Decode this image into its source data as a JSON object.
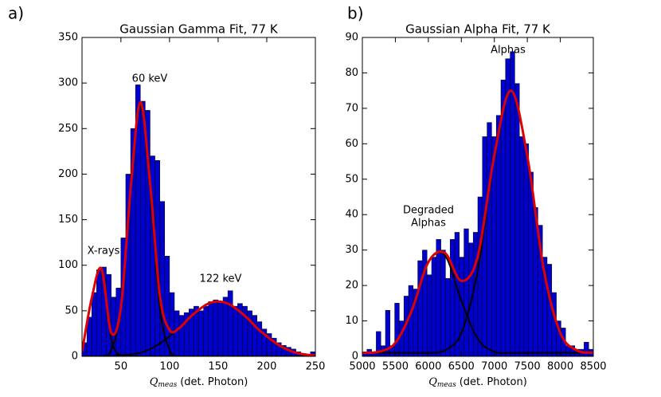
{
  "chart_data": [
    {
      "type": "histogram",
      "panel_label": "a)",
      "title": "Gaussian Gamma Fit, 77 K",
      "x_label": {
        "symbol": "Q",
        "subscript": "meas",
        "text": "(det. Photon)"
      },
      "bins": [
        10,
        15,
        20,
        25,
        30,
        35,
        40,
        45,
        50,
        55,
        60,
        65,
        70,
        75,
        80,
        85,
        90,
        95,
        100,
        105,
        110,
        115,
        120,
        125,
        130,
        135,
        140,
        145,
        150,
        155,
        160,
        165,
        170,
        175,
        180,
        185,
        190,
        195,
        200,
        205,
        210,
        215,
        220,
        225,
        230,
        235,
        240,
        245,
        250
      ],
      "counts": [
        15,
        43,
        70,
        95,
        98,
        90,
        65,
        75,
        130,
        200,
        250,
        298,
        280,
        270,
        220,
        215,
        170,
        110,
        70,
        50,
        45,
        48,
        52,
        55,
        50,
        55,
        60,
        62,
        60,
        65,
        72,
        55,
        58,
        55,
        50,
        45,
        38,
        30,
        25,
        20,
        15,
        12,
        10,
        8,
        5,
        3,
        2,
        5
      ],
      "color": "#0000cc",
      "fits": [
        {
          "color": "#000000",
          "x": [
            10,
            20,
            30,
            40,
            50,
            60,
            70,
            80,
            90,
            100,
            110,
            120,
            130,
            140,
            150,
            160,
            170,
            180,
            190,
            200,
            210,
            220,
            230,
            240,
            250
          ],
          "values": [
            5,
            64,
            96,
            19,
            0,
            0,
            0,
            0,
            0,
            0,
            0,
            0,
            0,
            0,
            0,
            0,
            0,
            0,
            0,
            0,
            0,
            0,
            0,
            0,
            0
          ]
        },
        {
          "color": "#000000",
          "x": [
            10,
            20,
            30,
            40,
            50,
            60,
            70,
            80,
            90,
            100,
            110,
            120,
            130,
            140,
            150,
            160,
            170,
            180,
            190,
            200,
            210,
            220,
            230,
            240,
            250
          ],
          "values": [
            0,
            0,
            0,
            7,
            53,
            182,
            275,
            182,
            53,
            7,
            0,
            0,
            0,
            0,
            0,
            0,
            0,
            0,
            0,
            0,
            0,
            0,
            0,
            0,
            0
          ]
        },
        {
          "color": "#000000",
          "x": [
            10,
            20,
            30,
            40,
            50,
            60,
            70,
            80,
            90,
            100,
            110,
            120,
            130,
            140,
            150,
            160,
            170,
            180,
            190,
            200,
            210,
            220,
            230,
            240,
            250
          ],
          "values": [
            0,
            0,
            0,
            0,
            1,
            2,
            4,
            8,
            14,
            22,
            31,
            42,
            51,
            58,
            60,
            58,
            51,
            42,
            31,
            22,
            14,
            8,
            4,
            2,
            1
          ]
        },
        {
          "color": "#e00000",
          "x": [
            10,
            20,
            30,
            40,
            50,
            60,
            70,
            80,
            90,
            100,
            110,
            120,
            130,
            140,
            150,
            160,
            170,
            180,
            190,
            200,
            210,
            220,
            230,
            240,
            250
          ],
          "values": [
            5,
            64,
            96,
            26,
            54,
            184,
            279,
            190,
            67,
            29,
            31,
            42,
            51,
            58,
            60,
            58,
            51,
            42,
            31,
            22,
            14,
            8,
            4,
            2,
            1
          ]
        }
      ],
      "annotations": [
        [
          "X-rays"
        ],
        [
          "60 keV"
        ],
        [
          "122 keV"
        ]
      ],
      "xlim": [
        10,
        250
      ],
      "ylim": [
        0,
        350
      ],
      "xticks": [
        50,
        100,
        150,
        200,
        250
      ],
      "yticks": [
        0,
        50,
        100,
        150,
        200,
        250,
        300,
        350
      ]
    },
    {
      "type": "histogram",
      "panel_label": "b)",
      "title": "Gaussian Alpha Fit, 77 K",
      "x_label": {
        "symbol": "Q",
        "subscript": "meas",
        "text": "(det. Photon)"
      },
      "bins": [
        5000,
        5070,
        5140,
        5210,
        5280,
        5350,
        5420,
        5490,
        5560,
        5630,
        5700,
        5770,
        5840,
        5910,
        5980,
        6050,
        6120,
        6190,
        6260,
        6330,
        6400,
        6470,
        6540,
        6610,
        6680,
        6750,
        6820,
        6890,
        6960,
        7030,
        7100,
        7170,
        7240,
        7310,
        7380,
        7450,
        7520,
        7590,
        7660,
        7730,
        7800,
        7870,
        7940,
        8010,
        8080,
        8150,
        8220,
        8290,
        8360,
        8430,
        8500
      ],
      "counts": [
        1,
        2,
        1,
        7,
        3,
        13,
        3,
        15,
        10,
        17,
        20,
        19,
        27,
        30,
        23,
        28,
        33,
        30,
        22,
        33,
        35,
        28,
        36,
        32,
        35,
        45,
        62,
        66,
        62,
        68,
        78,
        84,
        86,
        77,
        62,
        60,
        52,
        42,
        37,
        28,
        26,
        18,
        10,
        8,
        3,
        3,
        2,
        2,
        4,
        2
      ],
      "color": "#0000cc",
      "fits": [
        {
          "color": "#000000",
          "x": [
            5000,
            5250,
            5500,
            5750,
            6000,
            6250,
            6500,
            6750,
            7000,
            7250,
            7500,
            7750,
            8000,
            8250,
            8500
          ],
          "values": [
            1,
            1.3,
            3.8,
            13,
            26.6,
            28.5,
            15.7,
            4.9,
            1.3,
            1,
            1,
            1,
            1,
            1,
            1
          ]
        },
        {
          "color": "#000000",
          "x": [
            5000,
            5250,
            5500,
            5750,
            6000,
            6250,
            6500,
            6750,
            7000,
            7250,
            7500,
            7750,
            8000,
            8250,
            8500
          ],
          "values": [
            1,
            1,
            1,
            1,
            1,
            1.7,
            6.6,
            24.4,
            56.5,
            75,
            56.5,
            24.4,
            6.6,
            1.7,
            1
          ]
        },
        {
          "color": "#e00000",
          "x": [
            5000,
            5250,
            5500,
            5750,
            6000,
            6250,
            6500,
            6750,
            7000,
            7250,
            7500,
            7750,
            8000,
            8250,
            8500
          ],
          "values": [
            1,
            1.3,
            3.8,
            13,
            26.6,
            29.2,
            21.3,
            28.3,
            56.8,
            75,
            56.5,
            24.4,
            6.6,
            1.7,
            1
          ]
        }
      ],
      "annotations": [
        [
          "Degraded",
          "Alphas"
        ],
        [
          "Alphas"
        ]
      ],
      "xlim": [
        5000,
        8500
      ],
      "ylim": [
        0,
        90
      ],
      "xticks": [
        5000,
        5500,
        6000,
        6500,
        7000,
        7500,
        8000,
        8500
      ],
      "yticks": [
        0,
        10,
        20,
        30,
        40,
        50,
        60,
        70,
        80,
        90
      ]
    }
  ]
}
